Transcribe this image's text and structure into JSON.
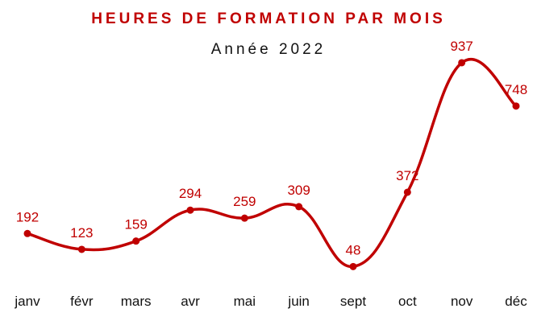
{
  "chart_data": {
    "type": "line",
    "title": "HEURES DE FORMATION PAR MOIS",
    "subtitle": "Année 2022",
    "categories": [
      "janv",
      "févr",
      "mars",
      "avr",
      "mai",
      "juin",
      "sept",
      "oct",
      "nov",
      "déc"
    ],
    "series": [
      {
        "values": [
          192,
          123,
          159,
          294,
          259,
          309,
          48,
          372,
          937,
          748
        ]
      }
    ],
    "xlabel": "",
    "ylabel": "",
    "ylim": [
      0,
      1000
    ],
    "grid": false,
    "legend": "none",
    "data_labels": true,
    "smooth": true
  },
  "colors": {
    "accent": "#C00000",
    "text": "#111111",
    "background": "#FFFFFF"
  }
}
